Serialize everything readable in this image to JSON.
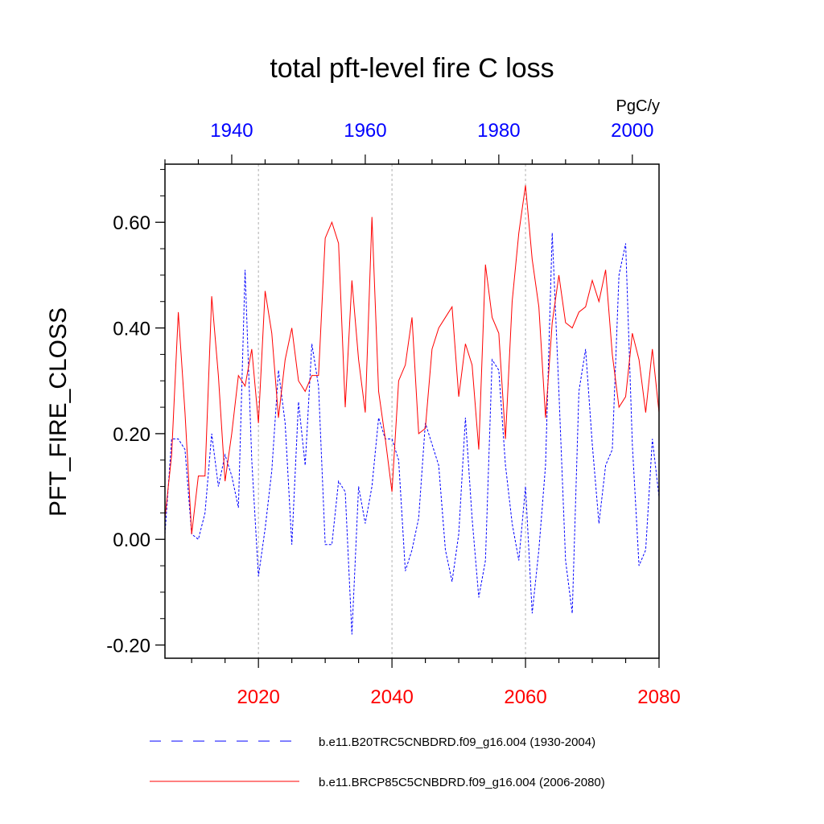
{
  "chart_data": {
    "type": "line",
    "title": "total pft-level fire C loss",
    "units": "PgC/y",
    "ylabel": "PFT_FIRE_CLOSS",
    "ylim": [
      -0.225,
      0.71
    ],
    "y_ticks": [
      {
        "value": -0.2,
        "label": "-0.20"
      },
      {
        "value": 0.0,
        "label": "0.00"
      },
      {
        "value": 0.2,
        "label": "0.20"
      },
      {
        "value": 0.4,
        "label": "0.40"
      },
      {
        "value": 0.6,
        "label": "0.60"
      }
    ],
    "top_axis": {
      "color": "#0000ff",
      "range": [
        1930,
        2004
      ],
      "ticks": [
        {
          "value": 1940,
          "label": "1940"
        },
        {
          "value": 1960,
          "label": "1960"
        },
        {
          "value": 1980,
          "label": "1980"
        },
        {
          "value": 2000,
          "label": "2000"
        }
      ]
    },
    "bottom_axis": {
      "color": "#ff0000",
      "range": [
        2006,
        2080
      ],
      "ticks": [
        {
          "value": 2020,
          "label": "2020"
        },
        {
          "value": 2040,
          "label": "2040"
        },
        {
          "value": 2060,
          "label": "2060"
        },
        {
          "value": 2080,
          "label": "2080"
        }
      ]
    },
    "grid": "vertical dashed at bottom-axis major ticks",
    "legend_position": "bottom",
    "series": [
      {
        "name": "b.e11.B20TRC5CNBDRD.f09_g16.004 (1930-2004)",
        "axis": "top",
        "color": "#0000ff",
        "style": "dashed",
        "x_start": 1930,
        "values": [
          0.01,
          0.19,
          0.19,
          0.17,
          0.01,
          0.0,
          0.05,
          0.2,
          0.1,
          0.16,
          0.12,
          0.06,
          0.51,
          0.15,
          -0.07,
          0.02,
          0.13,
          0.32,
          0.22,
          -0.01,
          0.26,
          0.14,
          0.37,
          0.29,
          -0.01,
          -0.01,
          0.11,
          0.09,
          -0.18,
          0.1,
          0.03,
          0.1,
          0.23,
          0.19,
          0.19,
          0.15,
          -0.06,
          -0.02,
          0.04,
          0.22,
          0.18,
          0.14,
          -0.02,
          -0.08,
          0.01,
          0.23,
          0.04,
          -0.11,
          -0.04,
          0.34,
          0.32,
          0.14,
          0.03,
          -0.04,
          0.1,
          -0.14,
          -0.02,
          0.14,
          0.58,
          0.28,
          -0.04,
          -0.14,
          0.28,
          0.36,
          0.18,
          0.03,
          0.14,
          0.17,
          0.5,
          0.56,
          0.18,
          -0.05,
          -0.02,
          0.19,
          0.08
        ]
      },
      {
        "name": "b.e11.BRCP85C5CNBDRD.f09_g16.004 (2006-2080)",
        "axis": "bottom",
        "color": "#ff0000",
        "style": "solid",
        "x_start": 2006,
        "values": [
          0.04,
          0.16,
          0.43,
          0.24,
          0.01,
          0.12,
          0.12,
          0.46,
          0.31,
          0.11,
          0.2,
          0.31,
          0.29,
          0.36,
          0.22,
          0.47,
          0.39,
          0.23,
          0.34,
          0.4,
          0.3,
          0.28,
          0.31,
          0.31,
          0.57,
          0.6,
          0.56,
          0.25,
          0.49,
          0.34,
          0.24,
          0.61,
          0.28,
          0.19,
          0.09,
          0.3,
          0.33,
          0.42,
          0.2,
          0.21,
          0.36,
          0.4,
          0.42,
          0.44,
          0.27,
          0.37,
          0.33,
          0.17,
          0.52,
          0.42,
          0.39,
          0.19,
          0.45,
          0.58,
          0.67,
          0.53,
          0.44,
          0.23,
          0.41,
          0.5,
          0.41,
          0.4,
          0.43,
          0.44,
          0.49,
          0.45,
          0.51,
          0.35,
          0.25,
          0.27,
          0.39,
          0.34,
          0.24,
          0.36,
          0.24
        ]
      }
    ]
  }
}
